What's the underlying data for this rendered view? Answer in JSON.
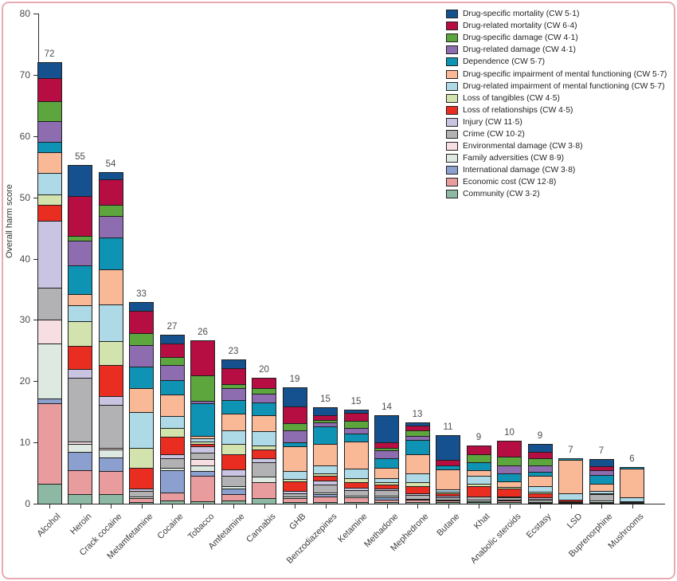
{
  "chart_data": {
    "type": "bar",
    "subtype": "stacked-vertical",
    "title": "",
    "ylabel": "Overall harm score",
    "xlabel": "",
    "ylim": [
      0,
      80
    ],
    "y_ticks": [
      0,
      10,
      20,
      30,
      40,
      50,
      60,
      70,
      80
    ],
    "grid": "off",
    "legend_position": "top-right",
    "categories": [
      "Alcohol",
      "Heroin",
      "Crack cocaine",
      "Metamfetamine",
      "Cocaine",
      "Tobacco",
      "Amfetamine",
      "Cannabis",
      "GHB",
      "Benzodiazepines",
      "Ketamine",
      "Methadone",
      "Mephedrone",
      "Butane",
      "Khat",
      "Anabolic steroids",
      "Ecstasy",
      "LSD",
      "Buprenorphine",
      "Mushrooms"
    ],
    "bar_total_labels": [
      72,
      55,
      54,
      33,
      27,
      26,
      23,
      20,
      19,
      15,
      15,
      14,
      13,
      11,
      9,
      10,
      9,
      7,
      7,
      6
    ],
    "series": [
      {
        "name": "Drug-specific mortality",
        "cw": "5·1",
        "color": "#15518f"
      },
      {
        "name": "Drug-related mortality",
        "cw": "6·4",
        "color": "#b60d43"
      },
      {
        "name": "Drug-specific damage",
        "cw": "4·1",
        "color": "#5da53d"
      },
      {
        "name": "Drug-related damage",
        "cw": "4·1",
        "color": "#8d6cb0"
      },
      {
        "name": "Dependence",
        "cw": "5·7",
        "color": "#0e93b4"
      },
      {
        "name": "Drug-specific impairment of mental functioning",
        "cw": "5·7",
        "color": "#f9b997"
      },
      {
        "name": "Drug-related impairment of mental functioning",
        "cw": "5·7",
        "color": "#aedae7"
      },
      {
        "name": "Loss of tangibles",
        "cw": "4·5",
        "color": "#d2e3ae"
      },
      {
        "name": "Loss of relationships",
        "cw": "4·5",
        "color": "#e92d20"
      },
      {
        "name": "Injury",
        "cw": "11·5",
        "color": "#c9c4e1"
      },
      {
        "name": "Crime",
        "cw": "10·2",
        "color": "#b2b2b4"
      },
      {
        "name": "Environmental damage",
        "cw": "3·8",
        "color": "#f7dee3"
      },
      {
        "name": "Family adversities",
        "cw": "8·9",
        "color": "#dde9e1"
      },
      {
        "name": "International damage",
        "cw": "3·8",
        "color": "#8ca0cf"
      },
      {
        "name": "Economic cost",
        "cw": "12·8",
        "color": "#e99c9e"
      },
      {
        "name": "Community",
        "cw": "3·2",
        "color": "#8db9a4"
      }
    ],
    "values": {
      "Alcohol": [
        2.4,
        3.8,
        3.2,
        3.5,
        1.6,
        3.4,
        3.5,
        1.7,
        2.6,
        11.0,
        5.1,
        3.9,
        9.1,
        0.7,
        13.1,
        3.3
      ],
      "Heroin": [
        5.0,
        6.5,
        0.8,
        4.0,
        4.7,
        1.8,
        2.6,
        4.1,
        3.7,
        1.5,
        10.4,
        0.3,
        1.3,
        3.0,
        3.9,
        1.6
      ],
      "Crack cocaine": [
        1.1,
        4.1,
        1.9,
        3.5,
        5.2,
        5.7,
        6.0,
        3.9,
        5.0,
        1.5,
        7.0,
        0.2,
        1.3,
        2.3,
        3.7,
        1.6
      ],
      "Metamfetamine": [
        1.3,
        3.7,
        1.9,
        3.5,
        3.5,
        3.9,
        5.9,
        3.3,
        3.4,
        0.3,
        0.9,
        0,
        0.3,
        0,
        0.6,
        0.3
      ],
      "Cocaine": [
        1.3,
        2.2,
        1.3,
        2.4,
        2.4,
        3.5,
        1.9,
        1.5,
        2.8,
        0.7,
        1.5,
        0,
        0.4,
        3.7,
        1.3,
        0.5
      ],
      "Tobacco": [
        0,
        5.6,
        4.1,
        0.4,
        5.3,
        0.5,
        0.5,
        0.4,
        0.4,
        1.0,
        1.0,
        1.0,
        1.0,
        0.7,
        4.2,
        0.4
      ],
      "Amfetamine": [
        1.3,
        2.6,
        0.7,
        1.9,
        2.2,
        2.8,
        2.2,
        1.7,
        2.4,
        1.1,
        1.7,
        0,
        0.4,
        0.9,
        1.0,
        0.5
      ],
      "Cannabis": [
        0,
        1.5,
        0.9,
        1.5,
        2.0,
        2.6,
        2.4,
        0.6,
        1.5,
        0.6,
        2.4,
        0,
        0.9,
        0,
        2.6,
        0.9
      ],
      "GHB": [
        3.0,
        2.8,
        1.1,
        2.0,
        0.7,
        4.0,
        1.3,
        0.4,
        1.5,
        0.4,
        0.6,
        0,
        0.2,
        0,
        0.6,
        0.3
      ],
      "Benzodiazepines": [
        1.1,
        0.9,
        0.3,
        0.7,
        2.8,
        3.6,
        1.3,
        0.4,
        0.7,
        0.7,
        1.3,
        0,
        0.3,
        0.3,
        1.0,
        0.2
      ],
      "Ketamine": [
        0.4,
        1.3,
        1.1,
        0.9,
        1.3,
        4.5,
        1.5,
        0.7,
        0.9,
        0.4,
        0.9,
        0,
        0.3,
        0,
        0.7,
        0.3
      ],
      "Methadone": [
        4.3,
        0.9,
        0.4,
        1.3,
        1.5,
        1.7,
        0.7,
        0.4,
        0.6,
        0.3,
        0.9,
        0,
        0.3,
        0.3,
        0.5,
        0.2
      ],
      "Mephedrone": [
        0.4,
        0.7,
        0.9,
        0.7,
        2.4,
        3.0,
        1.5,
        0.7,
        1.1,
        0.3,
        0.6,
        0,
        0.2,
        0,
        0.4,
        0.2
      ],
      "Butane": [
        3.9,
        0.9,
        0,
        0,
        0.7,
        3.3,
        0.4,
        0.2,
        0.4,
        0.3,
        0.3,
        0,
        0.2,
        0,
        0.3,
        0.2
      ],
      "Khat": [
        0,
        1.3,
        1.3,
        0,
        1.3,
        0.9,
        1.3,
        0.4,
        1.8,
        0,
        0.5,
        0,
        0.2,
        0,
        0.2,
        0.2
      ],
      "Anabolic steroids": [
        0,
        2.4,
        1.5,
        1.3,
        1.3,
        0.9,
        0,
        0.2,
        1.3,
        0.2,
        0.3,
        0,
        0.2,
        0,
        0.3,
        0.2
      ],
      "Ecstasy": [
        1.1,
        1.1,
        1.1,
        1.1,
        0.7,
        1.7,
        0.9,
        0.2,
        0.7,
        0.2,
        0.3,
        0,
        0.2,
        0,
        0.2,
        0.1
      ],
      "LSD": [
        0,
        0,
        0,
        0,
        0.2,
        5.4,
        1.1,
        0,
        0.2,
        0,
        0.2,
        0,
        0,
        0,
        0.1,
        0.1
      ],
      "Buprenorphine": [
        1.1,
        0.7,
        0,
        0.7,
        1.5,
        1.1,
        0.4,
        0,
        0.2,
        0,
        1.0,
        0,
        0.2,
        0,
        0.2,
        0.1
      ],
      "Mushrooms": [
        0,
        0,
        0,
        0,
        0.2,
        4.6,
        0.7,
        0,
        0.1,
        0,
        0.1,
        0,
        0,
        0,
        0.1,
        0.1
      ]
    },
    "legend_cw_prefix": "CW",
    "frame_color": "#eaaab2",
    "axis_color": "#2b2b2b",
    "segment_outline_color": "#1f1f1f"
  }
}
